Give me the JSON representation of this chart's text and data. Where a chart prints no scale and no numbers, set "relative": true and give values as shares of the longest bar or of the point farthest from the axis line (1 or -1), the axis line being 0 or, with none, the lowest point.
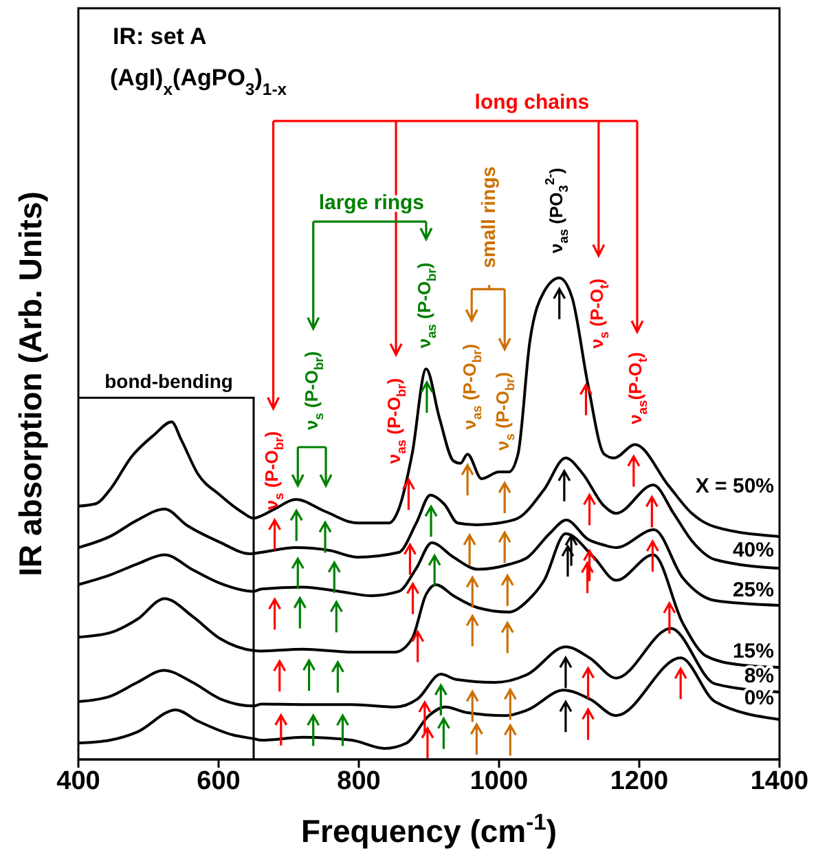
{
  "chart_data": {
    "type": "line",
    "title": "IR: set A",
    "subtitle": "(AgI)$_{x}$(AgPO$_{3}$)$_{1-x}$",
    "xlabel": "Frequency (cm$^{-1}$)",
    "ylabel": "IR absorption (Arb. Units)",
    "relative": true,
    "xlim": [
      400,
      1400
    ],
    "xticks": [
      400,
      600,
      800,
      1000,
      1200,
      1400
    ],
    "legend": "right",
    "annotations": [
      "long chains",
      "large rings",
      "small rings",
      "ν$_{s}$ (P-O$_{br}$)",
      "ν$_{s}$ (P-O$_{br}$)",
      "ν$_{as}$ (P-O$_{br}$)",
      "ν$_{as}$ (P-O$_{br}$)",
      "ν$_{as}$ (P-O$_{br}$)",
      "ν$_{s}$ (P-O$_{br}$)",
      "ν$_{as}$ (PO$_{3}$$^{2-}$)",
      "ν$_{s}$ (P-O$_{t}$)",
      "ν$_{as}$(P-O$_{t}$)",
      "bond-bending"
    ],
    "series": [
      {
        "name": "X = 50%",
        "color": "#000000",
        "x": [
          400,
          425,
          445,
          476,
          508,
          533,
          547,
          570,
          602,
          633,
          650,
          661,
          680,
          710,
          752,
          798,
          843,
          857,
          876,
          896,
          915,
          935,
          945,
          955,
          975,
          1000,
          1014,
          1027,
          1044,
          1064,
          1086,
          1104,
          1127,
          1150,
          1164,
          1194,
          1242,
          1275,
          1308,
          1400
        ],
        "values": [
          0.526,
          0.531,
          0.56,
          0.629,
          0.674,
          0.701,
          0.663,
          0.594,
          0.549,
          0.514,
          0.501,
          0.506,
          0.52,
          0.54,
          0.515,
          0.491,
          0.491,
          0.52,
          0.634,
          0.811,
          0.709,
          0.62,
          0.615,
          0.634,
          0.583,
          0.597,
          0.597,
          0.634,
          0.869,
          0.971,
          1.0,
          0.96,
          0.777,
          0.634,
          0.626,
          0.654,
          0.568,
          0.511,
          0.483,
          0.463
        ]
      },
      {
        "name": "40%",
        "color": "#000000",
        "x": [
          400,
          445,
          484,
          523,
          555,
          602,
          645,
          661,
          710,
          759,
          798,
          857,
          882,
          902,
          922,
          941,
          968,
          1000,
          1027,
          1064,
          1095,
          1119,
          1150,
          1167,
          1220,
          1249,
          1275,
          1308,
          1400
        ],
        "values": [
          0.44,
          0.463,
          0.497,
          0.52,
          0.486,
          0.451,
          0.427,
          0.43,
          0.44,
          0.434,
          0.42,
          0.43,
          0.491,
          0.549,
          0.53,
          0.491,
          0.487,
          0.491,
          0.501,
          0.56,
          0.626,
          0.594,
          0.526,
          0.511,
          0.57,
          0.511,
          0.454,
          0.415,
          0.397
        ]
      },
      {
        "name": "25%",
        "color": "#000000",
        "x": [
          400,
          445,
          484,
          523,
          563,
          602,
          650,
          661,
          720,
          772,
          818,
          857,
          882,
          904,
          935,
          970,
          1014,
          1041,
          1072,
          1096,
          1127,
          1150,
          1167,
          1221,
          1262,
          1308,
          1400
        ],
        "values": [
          0.363,
          0.383,
          0.406,
          0.425,
          0.394,
          0.366,
          0.349,
          0.354,
          0.358,
          0.349,
          0.34,
          0.349,
          0.397,
          0.45,
          0.42,
          0.395,
          0.405,
          0.42,
          0.469,
          0.497,
          0.457,
          0.445,
          0.44,
          0.477,
          0.377,
          0.33,
          0.32
        ]
      },
      {
        "name": "15%",
        "color": "#000000",
        "x": [
          400,
          445,
          484,
          523,
          563,
          602,
          650,
          661,
          720,
          790,
          852,
          876,
          896,
          910,
          935,
          970,
          1014,
          1041,
          1064,
          1095,
          1135,
          1167,
          1220,
          1262,
          1295,
          1341,
          1400
        ],
        "values": [
          0.254,
          0.263,
          0.291,
          0.334,
          0.297,
          0.251,
          0.226,
          0.225,
          0.229,
          0.223,
          0.223,
          0.251,
          0.343,
          0.363,
          0.34,
          0.315,
          0.306,
          0.33,
          0.371,
          0.469,
          0.42,
          0.372,
          0.425,
          0.283,
          0.215,
          0.197,
          0.191
        ]
      },
      {
        "name": "8%",
        "color": "#000000",
        "x": [
          400,
          445,
          484,
          522,
          563,
          602,
          650,
          661,
          720,
          790,
          852,
          884,
          917,
          939,
          994,
          1041,
          1095,
          1130,
          1167,
          1245,
          1308,
          1400
        ],
        "values": [
          0.12,
          0.131,
          0.16,
          0.185,
          0.16,
          0.126,
          0.111,
          0.115,
          0.114,
          0.114,
          0.109,
          0.126,
          0.177,
          0.166,
          0.16,
          0.177,
          0.234,
          0.21,
          0.169,
          0.272,
          0.157,
          0.14
        ]
      },
      {
        "name": "0%",
        "color": "#000000",
        "x": [
          400,
          445,
          484,
          539,
          570,
          620,
          650,
          661,
          720,
          790,
          837,
          868,
          900,
          923,
          955,
          1009,
          1041,
          1092,
          1130,
          1167,
          1259,
          1308,
          1400
        ],
        "values": [
          0.034,
          0.04,
          0.057,
          0.103,
          0.08,
          0.051,
          0.043,
          0.04,
          0.046,
          0.04,
          0.023,
          0.034,
          0.091,
          0.109,
          0.097,
          0.091,
          0.103,
          0.144,
          0.125,
          0.091,
          0.211,
          0.12,
          0.083
        ]
      }
    ]
  }
}
